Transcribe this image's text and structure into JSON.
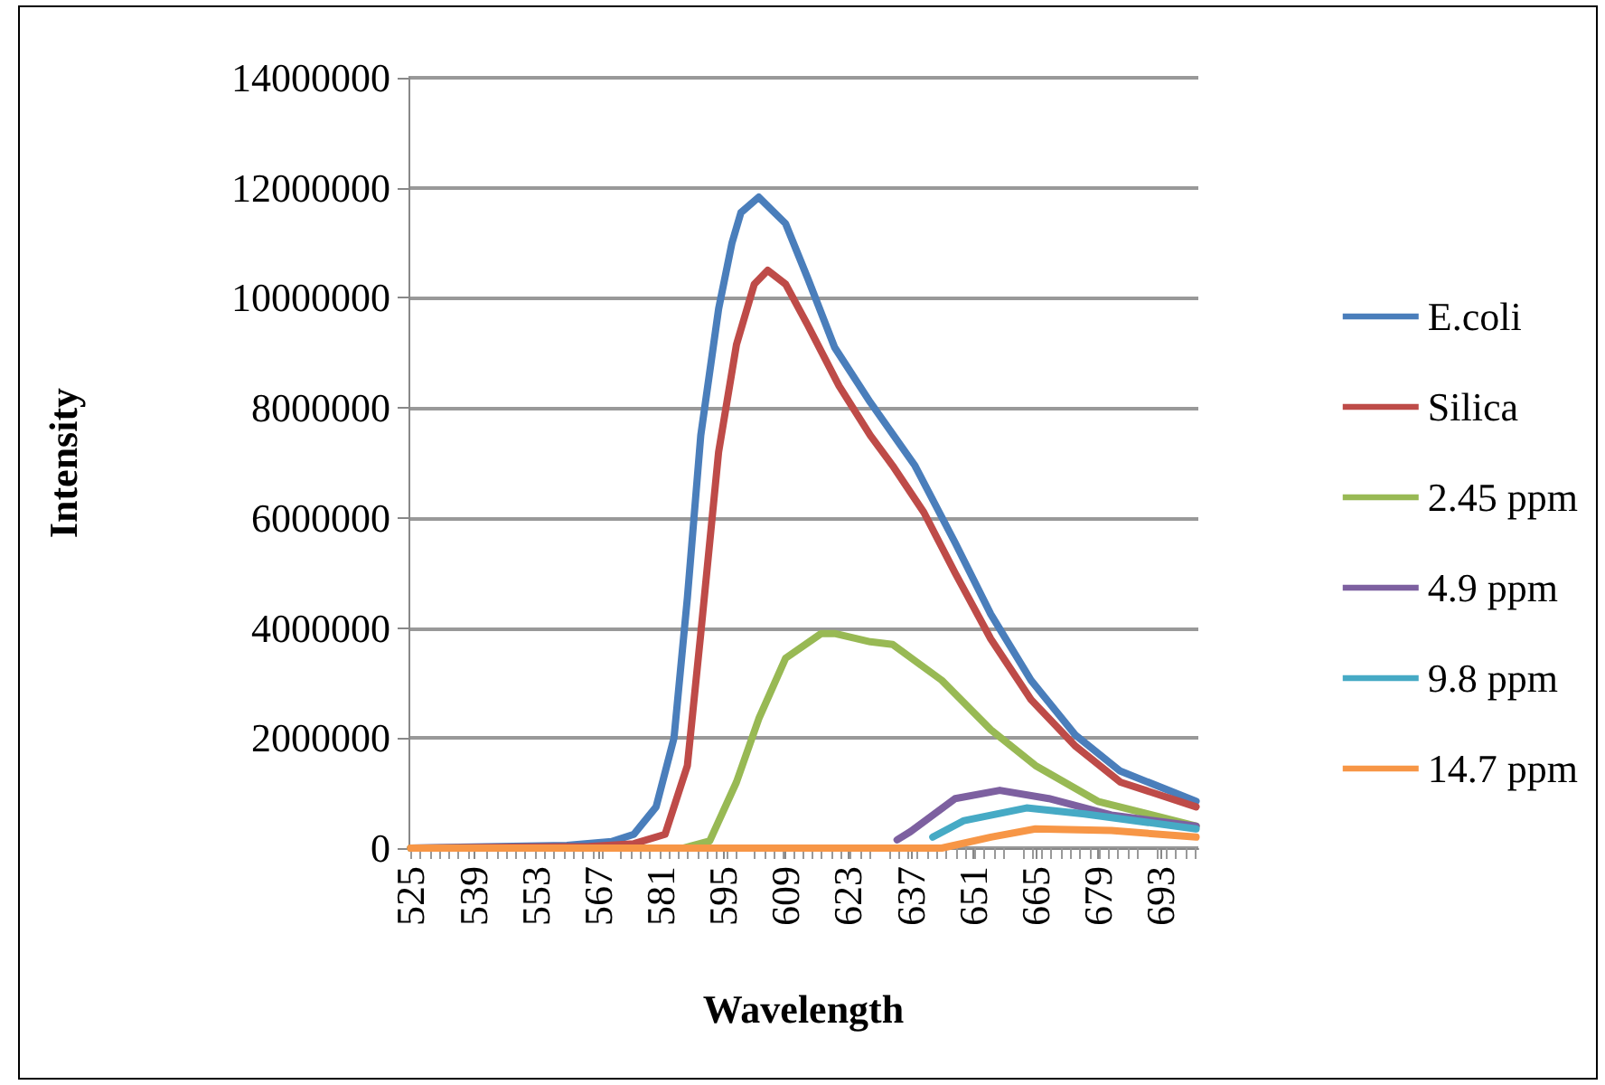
{
  "chart_data": {
    "type": "line",
    "xlabel": "Wavelength",
    "ylabel": "Intensity",
    "xlim": [
      524.5,
      701.5
    ],
    "xticks": [
      525,
      539,
      553,
      567,
      581,
      595,
      609,
      623,
      637,
      651,
      665,
      679,
      693
    ],
    "ylim": [
      0,
      14000000
    ],
    "yticks": [
      0,
      2000000,
      4000000,
      6000000,
      8000000,
      10000000,
      12000000,
      14000000
    ],
    "grid": "y",
    "legend": "right",
    "marker": "none",
    "line_style": "solid",
    "series": [
      {
        "name": "E.coli",
        "color": "#4a7ebb",
        "x": [
          525,
          560,
          570,
          575,
          580,
          584,
          587,
          590,
          594,
          597,
          599,
          603,
          609,
          614,
          620,
          628,
          638,
          647,
          655,
          664,
          674,
          684,
          701
        ],
        "values": [
          0,
          50000,
          120000,
          250000,
          750000,
          2000000,
          4550000,
          7500000,
          9800000,
          11000000,
          11550000,
          11830000,
          11350000,
          10350000,
          9100000,
          8100000,
          6950000,
          5550000,
          4250000,
          3050000,
          2050000,
          1400000,
          850000
        ]
      },
      {
        "name": "Silica",
        "color": "#be4b48",
        "x": [
          525,
          565,
          575,
          582,
          587,
          590,
          594,
          598,
          602,
          605,
          609,
          614,
          621,
          628,
          633,
          640,
          647,
          655,
          664,
          674,
          684,
          701
        ],
        "values": [
          0,
          30000,
          80000,
          250000,
          1500000,
          3900000,
          7200000,
          9150000,
          10250000,
          10500000,
          10250000,
          9500000,
          8400000,
          7500000,
          6950000,
          6100000,
          5000000,
          3800000,
          2700000,
          1850000,
          1200000,
          750000
        ]
      },
      {
        "name": "2.45 ppm",
        "color": "#98b954",
        "x": [
          525,
          586,
          592,
          598,
          603,
          609,
          617,
          620,
          628,
          633,
          644,
          655,
          665,
          679,
          701
        ],
        "values": [
          0,
          0,
          130000,
          1200000,
          2350000,
          3450000,
          3900000,
          3900000,
          3750000,
          3700000,
          3050000,
          2150000,
          1500000,
          850000,
          400000
        ]
      },
      {
        "name": "4.9 ppm",
        "color": "#7d60a0",
        "x": [
          634,
          637,
          647,
          657,
          668,
          682,
          701
        ],
        "values": [
          150000,
          300000,
          900000,
          1050000,
          900000,
          600000,
          400000
        ]
      },
      {
        "name": "9.8 ppm",
        "color": "#46aac5",
        "x": [
          642,
          649,
          663,
          676,
          701
        ],
        "values": [
          200000,
          500000,
          730000,
          620000,
          350000
        ]
      },
      {
        "name": "14.7 ppm",
        "color": "#f79646",
        "x": [
          525,
          644,
          655,
          665,
          682,
          701
        ],
        "values": [
          0,
          0,
          200000,
          350000,
          320000,
          200000
        ]
      }
    ]
  }
}
